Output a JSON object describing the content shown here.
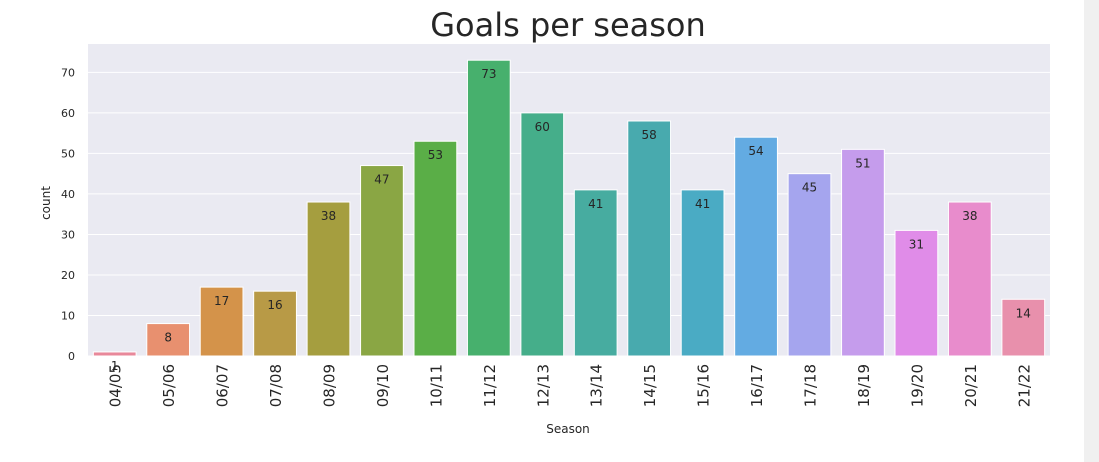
{
  "chart_data": {
    "type": "bar",
    "title": "Goals per season",
    "xlabel": "Season",
    "ylabel": "count",
    "ylim": [
      0,
      77
    ],
    "yticks": [
      0,
      10,
      20,
      30,
      40,
      50,
      60,
      70
    ],
    "grid": true,
    "categories": [
      "04/05",
      "05/06",
      "06/07",
      "07/08",
      "08/09",
      "09/10",
      "10/11",
      "11/12",
      "12/13",
      "13/14",
      "14/15",
      "15/16",
      "16/17",
      "17/18",
      "18/19",
      "19/20",
      "20/21",
      "21/22"
    ],
    "values": [
      1,
      8,
      17,
      16,
      38,
      47,
      53,
      73,
      60,
      41,
      58,
      41,
      54,
      45,
      51,
      31,
      38,
      14
    ],
    "colors": [
      "#e8889a",
      "#e8906f",
      "#d4934a",
      "#b89a46",
      "#a59e3f",
      "#8aa644",
      "#5aae47",
      "#47b06d",
      "#45ae8a",
      "#47aca0",
      "#48aaae",
      "#4aabc4",
      "#63abe2",
      "#a5a5ee",
      "#c59cec",
      "#e08ce8",
      "#e88ccc",
      "#e890ac"
    ],
    "background": "#eaeaf2"
  }
}
